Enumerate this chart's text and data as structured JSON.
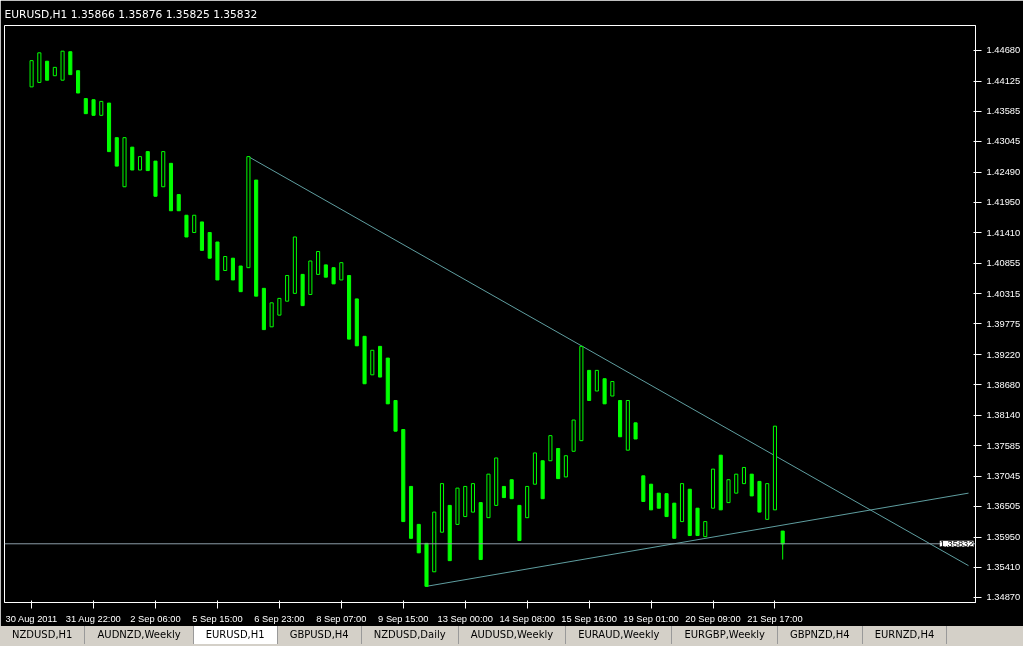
{
  "chart_data": {
    "type": "candlestick",
    "title": "EURUSD,H1  1.35866 1.35876 1.35825 1.35832",
    "categories": [
      "30 Aug 2011",
      null,
      null,
      null,
      null,
      null,
      null,
      null,
      "31 Aug 22:00",
      null,
      null,
      null,
      null,
      null,
      null,
      null,
      "2 Sep 06:00",
      null,
      null,
      null,
      null,
      null,
      null,
      null,
      "5 Sep 15:00",
      null,
      null,
      null,
      null,
      null,
      null,
      null,
      "6 Sep 23:00",
      null,
      null,
      null,
      null,
      null,
      null,
      null,
      "8 Sep 07:00",
      null,
      null,
      null,
      null,
      null,
      null,
      null,
      "9 Sep 15:00",
      null,
      null,
      null,
      null,
      null,
      null,
      null,
      "13 Sep 00:00",
      null,
      null,
      null,
      null,
      null,
      null,
      null,
      "14 Sep 08:00",
      null,
      null,
      null,
      null,
      null,
      null,
      null,
      "15 Sep 16:00",
      null,
      null,
      null,
      null,
      null,
      null,
      null,
      "19 Sep 01:00",
      null,
      null,
      null,
      null,
      null,
      null,
      null,
      "20 Sep 09:00",
      null,
      null,
      null,
      null,
      null,
      null,
      null,
      "21 Sep 17:00",
      null,
      null,
      null,
      null,
      null,
      null,
      null,
      null,
      null,
      null,
      null,
      null,
      null,
      null,
      null,
      null,
      null,
      null,
      null,
      null,
      null,
      null,
      null,
      null,
      null
    ],
    "ohlc": [
      [
        1.4402,
        1.4449,
        1.4402,
        1.4449
      ],
      [
        1.441,
        1.4463,
        1.441,
        1.4463
      ],
      [
        1.4448,
        1.4448,
        1.4414,
        1.4414
      ],
      [
        1.4422,
        1.4437,
        1.4422,
        1.4437
      ],
      [
        1.4414,
        1.4466,
        1.4414,
        1.4466
      ],
      [
        1.4465,
        1.4465,
        1.4424,
        1.4424
      ],
      [
        1.4431,
        1.4431,
        1.4391,
        1.4391
      ],
      [
        1.4381,
        1.4381,
        1.4354,
        1.4354
      ],
      [
        1.4379,
        1.4379,
        1.4351,
        1.4351
      ],
      [
        1.4351,
        1.4376,
        1.4351,
        1.4376
      ],
      [
        1.4373,
        1.4373,
        1.4286,
        1.4286
      ],
      [
        1.4311,
        1.4311,
        1.426,
        1.426
      ],
      [
        1.4223,
        1.4311,
        1.4223,
        1.4311
      ],
      [
        1.4294,
        1.4294,
        1.4253,
        1.4253
      ],
      [
        1.4253,
        1.4277,
        1.4253,
        1.4277
      ],
      [
        1.4286,
        1.4286,
        1.4252,
        1.4252
      ],
      [
        1.4269,
        1.4269,
        1.4206,
        1.4206
      ],
      [
        1.4223,
        1.4286,
        1.4223,
        1.4286
      ],
      [
        1.4265,
        1.4265,
        1.418,
        1.418
      ],
      [
        1.4209,
        1.4209,
        1.418,
        1.418
      ],
      [
        1.4172,
        1.4172,
        1.4133,
        1.4133
      ],
      [
        1.4141,
        1.4172,
        1.4141,
        1.4172
      ],
      [
        1.416,
        1.416,
        1.4109,
        1.4109
      ],
      [
        1.4141,
        1.4141,
        1.4095,
        1.4095
      ],
      [
        1.4124,
        1.4124,
        1.4056,
        1.4056
      ],
      [
        1.4073,
        1.4098,
        1.4073,
        1.4098
      ],
      [
        1.4095,
        1.4095,
        1.4056,
        1.4056
      ],
      [
        1.4081,
        1.4081,
        1.4035,
        1.4035
      ],
      [
        1.4078,
        1.4277,
        1.4078,
        1.4277
      ],
      [
        1.4235,
        1.4235,
        1.4027,
        1.4027
      ],
      [
        1.4041,
        1.4041,
        1.3967,
        1.3967
      ],
      [
        1.3972,
        1.4015,
        1.3972,
        1.4015
      ],
      [
        1.3993,
        1.4023,
        1.3993,
        1.4023
      ],
      [
        1.4018,
        1.4064,
        1.4018,
        1.4064
      ],
      [
        1.4032,
        1.4133,
        1.4032,
        1.4133
      ],
      [
        1.4066,
        1.4066,
        1.401,
        1.401
      ],
      [
        1.403,
        1.409,
        1.403,
        1.409
      ],
      [
        1.4066,
        1.4107,
        1.4066,
        1.4107
      ],
      [
        1.4083,
        1.4083,
        1.4061,
        1.4061
      ],
      [
        1.4078,
        1.4078,
        1.4049,
        1.4049
      ],
      [
        1.4056,
        1.4087,
        1.4056,
        1.4087
      ],
      [
        1.4064,
        1.4064,
        1.395,
        1.395
      ],
      [
        1.4022,
        1.4022,
        1.3938,
        1.3938
      ],
      [
        1.3955,
        1.3955,
        1.387,
        1.387
      ],
      [
        1.3886,
        1.393,
        1.3886,
        1.393
      ],
      [
        1.3937,
        1.3937,
        1.3882,
        1.3882
      ],
      [
        1.3916,
        1.3916,
        1.3834,
        1.3834
      ],
      [
        1.384,
        1.384,
        1.3785,
        1.3785
      ],
      [
        1.3788,
        1.3788,
        1.3623,
        1.3623
      ],
      [
        1.3686,
        1.3686,
        1.3593,
        1.3593
      ],
      [
        1.3618,
        1.3618,
        1.3567,
        1.3567
      ],
      [
        1.3584,
        1.3584,
        1.3507,
        1.3507
      ],
      [
        1.3533,
        1.364,
        1.3533,
        1.364
      ],
      [
        1.3604,
        1.3691,
        1.3604,
        1.3691
      ],
      [
        1.3652,
        1.3652,
        1.3553,
        1.3553
      ],
      [
        1.3618,
        1.3683,
        1.3618,
        1.3683
      ],
      [
        1.3632,
        1.3686,
        1.3632,
        1.3686
      ],
      [
        1.364,
        1.3691,
        1.364,
        1.3691
      ],
      [
        1.3657,
        1.3657,
        1.3555,
        1.3555
      ],
      [
        1.363,
        1.3708,
        1.363,
        1.3708
      ],
      [
        1.3652,
        1.3737,
        1.3652,
        1.3737
      ],
      [
        1.3686,
        1.3686,
        1.3666,
        1.3666
      ],
      [
        1.3698,
        1.3698,
        1.3664,
        1.3664
      ],
      [
        1.3652,
        1.3652,
        1.3589,
        1.3589
      ],
      [
        1.363,
        1.3686,
        1.363,
        1.3686
      ],
      [
        1.369,
        1.3746,
        1.369,
        1.3746
      ],
      [
        1.3732,
        1.3732,
        1.3664,
        1.3664
      ],
      [
        1.3732,
        1.3777,
        1.3732,
        1.3777
      ],
      [
        1.3754,
        1.3754,
        1.37,
        1.37
      ],
      [
        1.3703,
        1.3741,
        1.3703,
        1.3741
      ],
      [
        1.3749,
        1.3805,
        1.3749,
        1.3805
      ],
      [
        1.3768,
        1.3937,
        1.3768,
        1.3937
      ],
      [
        1.3894,
        1.3894,
        1.384,
        1.384
      ],
      [
        1.3857,
        1.3894,
        1.3857,
        1.3894
      ],
      [
        1.3879,
        1.3879,
        1.3834,
        1.3834
      ],
      [
        1.3848,
        1.3874,
        1.3848,
        1.3874
      ],
      [
        1.384,
        1.384,
        1.3775,
        1.3775
      ],
      [
        1.3751,
        1.384,
        1.3751,
        1.384
      ],
      [
        1.38,
        1.38,
        1.3771,
        1.3771
      ],
      [
        1.3705,
        1.3705,
        1.3659,
        1.3659
      ],
      [
        1.369,
        1.369,
        1.3644,
        1.3644
      ],
      [
        1.3674,
        1.3674,
        1.3647,
        1.3647
      ],
      [
        1.3673,
        1.3673,
        1.3632,
        1.3632
      ],
      [
        1.3656,
        1.3656,
        1.3593,
        1.3593
      ],
      [
        1.3623,
        1.3691,
        1.3623,
        1.3691
      ],
      [
        1.3681,
        1.3681,
        1.3598,
        1.3598
      ],
      [
        1.3647,
        1.3647,
        1.3598,
        1.3598
      ],
      [
        1.3596,
        1.3623,
        1.3596,
        1.3623
      ],
      [
        1.3647,
        1.3717,
        1.3647,
        1.3717
      ],
      [
        1.3742,
        1.3742,
        1.3644,
        1.3644
      ],
      [
        1.3657,
        1.3698,
        1.3657,
        1.3698
      ],
      [
        1.3674,
        1.3708,
        1.3674,
        1.3708
      ],
      [
        1.3691,
        1.372,
        1.3691,
        1.372
      ],
      [
        1.3708,
        1.3708,
        1.3669,
        1.3669
      ],
      [
        1.3695,
        1.3695,
        1.364,
        1.364
      ],
      [
        1.3627,
        1.3691,
        1.3627,
        1.3691
      ],
      [
        1.3644,
        1.3794,
        1.3644,
        1.3794
      ],
      [
        1.3606,
        1.3606,
        1.3555,
        1.3583
      ],
      null,
      null,
      null,
      null,
      null,
      null,
      null,
      null,
      null,
      null,
      null,
      null,
      null,
      null,
      null,
      null,
      null,
      null,
      null,
      null,
      null,
      null,
      null,
      null
    ],
    "color": "#00ff00",
    "series": [
      {
        "type": "line",
        "color": "#5f9ea0",
        "values": [
          null,
          null,
          null,
          null,
          null,
          null,
          null,
          null,
          null,
          null,
          null,
          null,
          null,
          null,
          null,
          null,
          null,
          null,
          null,
          null,
          null,
          null,
          null,
          null,
          null,
          null,
          null,
          null,
          1.4277,
          null,
          null,
          null,
          null,
          null,
          null,
          null,
          null,
          null,
          null,
          null,
          null,
          null,
          null,
          null,
          null,
          null,
          null,
          null,
          null,
          null,
          null,
          null,
          null,
          null,
          null,
          null,
          null,
          null,
          null,
          null,
          null,
          null,
          null,
          null,
          null,
          null,
          null,
          null,
          null,
          null,
          null,
          null,
          null,
          null,
          null,
          null,
          null,
          null,
          null,
          null,
          null,
          null,
          null,
          null,
          null,
          null,
          null,
          null,
          null,
          null,
          null,
          null,
          null,
          null,
          null,
          null,
          null,
          null,
          null,
          null,
          null,
          null,
          null,
          null,
          null,
          null,
          null,
          null,
          null,
          null,
          null,
          null,
          null,
          null,
          null,
          null,
          null,
          null,
          null,
          null,
          null,
          1.3544
        ]
      },
      {
        "type": "line",
        "color": "#5f9ea0",
        "values": [
          null,
          null,
          null,
          null,
          null,
          null,
          null,
          null,
          null,
          null,
          null,
          null,
          null,
          null,
          null,
          null,
          null,
          null,
          null,
          null,
          null,
          null,
          null,
          null,
          null,
          null,
          null,
          null,
          null,
          null,
          null,
          null,
          null,
          null,
          null,
          null,
          null,
          null,
          null,
          null,
          null,
          null,
          null,
          null,
          null,
          null,
          null,
          null,
          null,
          null,
          null,
          1.3507,
          null,
          null,
          null,
          null,
          null,
          null,
          null,
          null,
          null,
          null,
          null,
          null,
          null,
          null,
          null,
          null,
          null,
          null,
          null,
          null,
          null,
          null,
          null,
          null,
          null,
          null,
          null,
          null,
          null,
          null,
          null,
          null,
          null,
          null,
          null,
          null,
          null,
          null,
          null,
          null,
          null,
          null,
          null,
          null,
          null,
          null,
          null,
          null,
          null,
          null,
          null,
          null,
          null,
          null,
          null,
          null,
          null,
          null,
          null,
          null,
          null,
          null,
          null,
          null,
          null,
          null,
          null,
          null,
          null,
          1.3674
        ]
      }
    ],
    "ylim": [
      1.3478,
      1.4512
    ],
    "yticks": [
      {
        "value": 1.4468,
        "label": "1.44680"
      },
      {
        "value": 1.44125,
        "label": "1.44125"
      },
      {
        "value": 1.43585,
        "label": "1.43585"
      },
      {
        "value": 1.43045,
        "label": "1.43045"
      },
      {
        "value": 1.4249,
        "label": "1.42490"
      },
      {
        "value": 1.4195,
        "label": "1.41950"
      },
      {
        "value": 1.4141,
        "label": "1.41410"
      },
      {
        "value": 1.40855,
        "label": "1.40855"
      },
      {
        "value": 1.40315,
        "label": "1.40315"
      },
      {
        "value": 1.39775,
        "label": "1.39775"
      },
      {
        "value": 1.3922,
        "label": "1.39220"
      },
      {
        "value": 1.3868,
        "label": "1.38680"
      },
      {
        "value": 1.3814,
        "label": "1.38140"
      },
      {
        "value": 1.37585,
        "label": "1.37585"
      },
      {
        "value": 1.37045,
        "label": "1.37045"
      },
      {
        "value": 1.36505,
        "label": "1.36505"
      },
      {
        "value": 1.3595,
        "label": "1.35950"
      },
      {
        "value": 1.3541,
        "label": "1.35410"
      },
      {
        "value": 1.3487,
        "label": "1.34870"
      }
    ],
    "ref_lines": [
      {
        "axis": "y",
        "value": 1.35832,
        "label": "1.35832",
        "color": "#8c9ca8"
      }
    ],
    "grid": false,
    "annotations": [
      "NZDUSD,H1",
      "AUDNZD,Weekly",
      "EURUSD,H1",
      "GBPUSD,H4",
      "NZDUSD,Daily",
      "AUDUSD,Weekly",
      "EURAUD,Weekly",
      "EURGBP,Weekly",
      "GBPNZD,H4",
      "EURNZD,H4"
    ]
  }
}
